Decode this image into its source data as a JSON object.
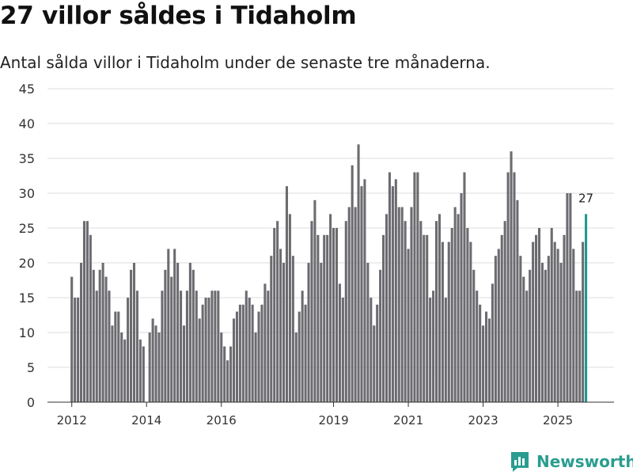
{
  "title": "27 villor såldes i Tidaholm",
  "subtitle": "Antal sålda villor i Tidaholm under de senaste tre månaderna.",
  "brand": {
    "name": "Newsworthy",
    "logo_icon": "bar-chart-logo-icon"
  },
  "colors": {
    "bar": "#6b6b70",
    "highlight": "#1a9a94",
    "grid": "#dddddd",
    "axis": "#333333",
    "brand": "#2a9d8f"
  },
  "chart_data": {
    "type": "bar",
    "title": "27 villor såldes i Tidaholm",
    "xlabel": "",
    "ylabel": "",
    "ylim": [
      0,
      45
    ],
    "yticks": [
      0,
      5,
      10,
      15,
      20,
      25,
      30,
      35,
      40,
      45
    ],
    "xticks": [
      2012,
      2014,
      2016,
      2019,
      2021,
      2023,
      2025
    ],
    "xlim": [
      2011.35,
      2026.5
    ],
    "start_year": 2012,
    "step_months": 1,
    "grid": true,
    "highlight_last": true,
    "last_label": "27",
    "values": [
      18,
      15,
      15,
      20,
      26,
      26,
      24,
      19,
      16,
      19,
      20,
      18,
      16,
      11,
      13,
      13,
      10,
      9,
      15,
      19,
      20,
      16,
      9,
      8,
      0,
      10,
      12,
      11,
      10,
      16,
      19,
      22,
      18,
      22,
      20,
      16,
      11,
      16,
      20,
      19,
      16,
      12,
      14,
      15,
      15,
      16,
      16,
      16,
      10,
      8,
      6,
      8,
      12,
      13,
      14,
      14,
      16,
      15,
      14,
      10,
      13,
      14,
      17,
      16,
      21,
      25,
      26,
      22,
      20,
      31,
      27,
      21,
      10,
      13,
      16,
      14,
      20,
      26,
      29,
      24,
      20,
      24,
      24,
      27,
      25,
      25,
      17,
      15,
      26,
      28,
      34,
      28,
      37,
      31,
      32,
      20,
      15,
      11,
      14,
      19,
      24,
      27,
      33,
      31,
      32,
      28,
      28,
      26,
      22,
      28,
      33,
      33,
      26,
      24,
      24,
      15,
      16,
      26,
      27,
      23,
      15,
      23,
      25,
      28,
      27,
      30,
      33,
      25,
      23,
      19,
      16,
      14,
      11,
      13,
      12,
      17,
      21,
      22,
      24,
      26,
      33,
      36,
      33,
      29,
      21,
      18,
      16,
      19,
      23,
      24,
      25,
      20,
      19,
      21,
      25,
      23,
      22,
      20,
      24,
      30,
      30,
      22,
      16,
      16,
      23,
      27
    ]
  }
}
